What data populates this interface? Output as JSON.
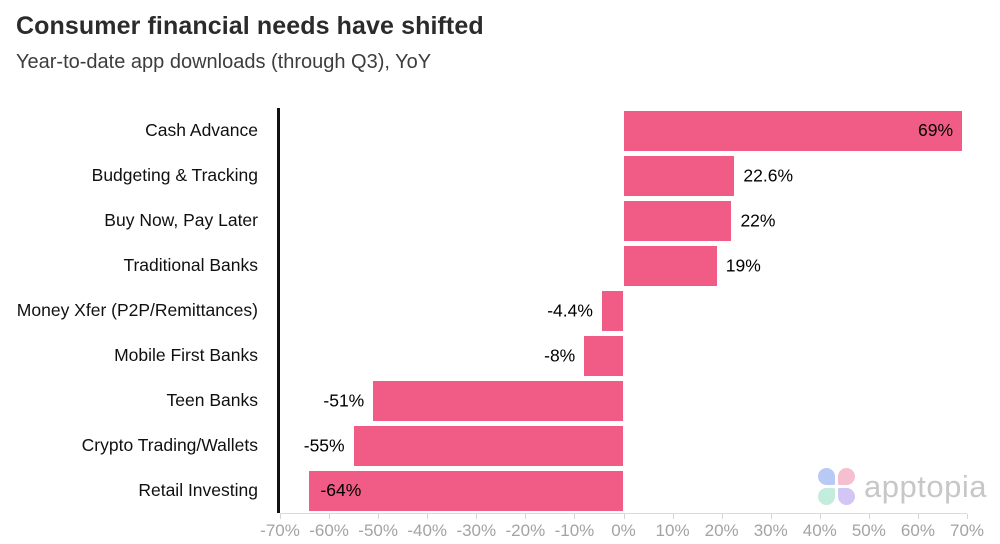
{
  "header": {
    "title": "Consumer financial needs have shifted",
    "subtitle": "Year-to-date app downloads (through Q3), YoY"
  },
  "chart_data": {
    "type": "bar",
    "orientation": "horizontal",
    "title": "Consumer financial needs have shifted",
    "subtitle": "Year-to-date app downloads (through Q3), YoY",
    "categories": [
      "Cash Advance",
      "Budgeting & Tracking",
      "Buy Now, Pay Later",
      "Traditional Banks",
      "Money Xfer (P2P/Remittances)",
      "Mobile First Banks",
      "Teen Banks",
      "Crypto Trading/Wallets",
      "Retail Investing"
    ],
    "values": [
      69,
      22.6,
      22,
      19,
      -4.4,
      -8,
      -51,
      -55,
      -64
    ],
    "value_labels": [
      "69%",
      "22.6%",
      "22%",
      "19%",
      "-4.4%",
      "-8%",
      "-51%",
      "-55%",
      "-64%"
    ],
    "xlim": [
      -70,
      70
    ],
    "x_tick_values": [
      -70,
      -60,
      -50,
      -40,
      -30,
      -20,
      -10,
      0,
      10,
      20,
      30,
      40,
      50,
      60,
      70
    ],
    "x_tick_labels": [
      "-70%",
      "-60%",
      "-50%",
      "-40%",
      "-30%",
      "-20%",
      "-10%",
      "0%",
      "10%",
      "20%",
      "30%",
      "40%",
      "50%",
      "60%",
      "70%"
    ],
    "bar_color": "#f05c85",
    "grid": false,
    "legend": null
  },
  "branding": {
    "logo_text": "apptopia",
    "petal_colors": {
      "top_left": "#b9c9f5",
      "top_right": "#f6bfcf",
      "bottom_left": "#c3ecdc",
      "bottom_right": "#d2c6f6"
    }
  }
}
